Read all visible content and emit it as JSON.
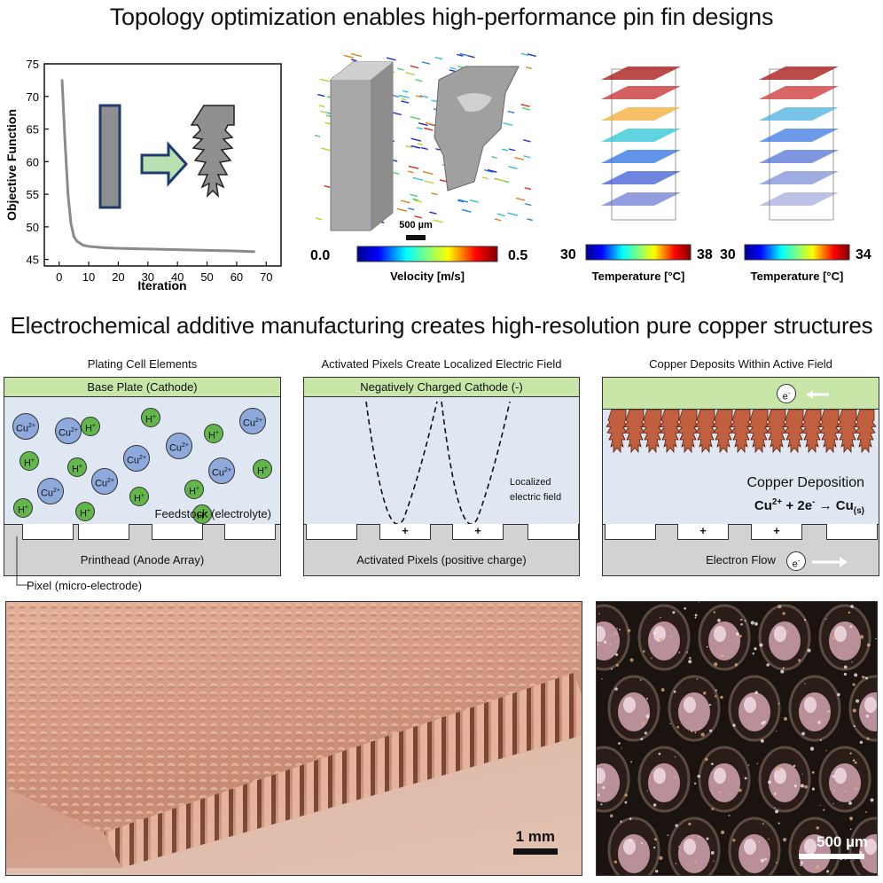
{
  "headings": {
    "top": "Topology optimization enables high-performance pin fin designs",
    "middle": "Electrochemical additive manufacturing creates high-resolution pure copper structures"
  },
  "chart_data": {
    "type": "line",
    "xlabel": "Iteration",
    "ylabel": "Objective Function",
    "xlim": [
      -5,
      75
    ],
    "ylim": [
      44,
      75
    ],
    "xticks": [
      0,
      10,
      20,
      30,
      40,
      50,
      60,
      70
    ],
    "yticks": [
      45,
      50,
      55,
      60,
      65,
      70,
      75
    ],
    "x": [
      1,
      2,
      3,
      4,
      5,
      6,
      8,
      10,
      15,
      20,
      30,
      40,
      50,
      60,
      66
    ],
    "y": [
      72.5,
      63,
      55,
      50.5,
      48.5,
      47.8,
      47.2,
      47,
      46.8,
      46.7,
      46.6,
      46.5,
      46.4,
      46.3,
      46.2
    ],
    "grid": false
  },
  "velocity": {
    "min": "0.0",
    "max": "0.5",
    "label": "Velocity [m/s]",
    "scale": "500 µm"
  },
  "temp1": {
    "min": "30",
    "max": "38",
    "label": "Temperature [°C]"
  },
  "temp2": {
    "min": "30",
    "max": "34",
    "label": "Temperature [°C]"
  },
  "cell1": {
    "title": "Plating Cell Elements",
    "cathode": "Base Plate (Cathode)",
    "electrolyte": "Feedstock (electrolyte)",
    "anode": "Printhead (Anode Array)",
    "pixel_label": "Pixel (micro-electrode)",
    "cu": "Cu",
    "cu_sup": "2+",
    "h": "H",
    "h_sup": "+"
  },
  "cell2": {
    "title": "Activated Pixels Create Localized Electric Field",
    "cathode": "Negatively Charged Cathode (-)",
    "field_line1": "Localized",
    "field_line2": "electric field",
    "anode": "Activated Pixels (positive charge)",
    "plus": "+"
  },
  "cell3": {
    "title": "Copper Deposits Within Active Field",
    "electron": "e",
    "electron_sup": "-",
    "deposition": "Copper Deposition",
    "eq_cu": "Cu",
    "eq_sup1": "2+",
    "eq_mid": "+ 2e",
    "eq_sup2": "-",
    "eq_arrow": "→",
    "eq_prod": "Cu",
    "eq_sub": "(s)",
    "anode": "Electron Flow",
    "plus": "+"
  },
  "photo1": {
    "scale": "1 mm"
  },
  "photo2": {
    "scale": "500 µm"
  },
  "colors": {
    "cathode_green": "#c7e6a8",
    "electrolyte_blue": "#dfe7f3",
    "anode_gray": "#d2d2d2",
    "copper": "#c0603f",
    "cu_ion": "#8ea9dc",
    "h_ion": "#63b64a"
  }
}
